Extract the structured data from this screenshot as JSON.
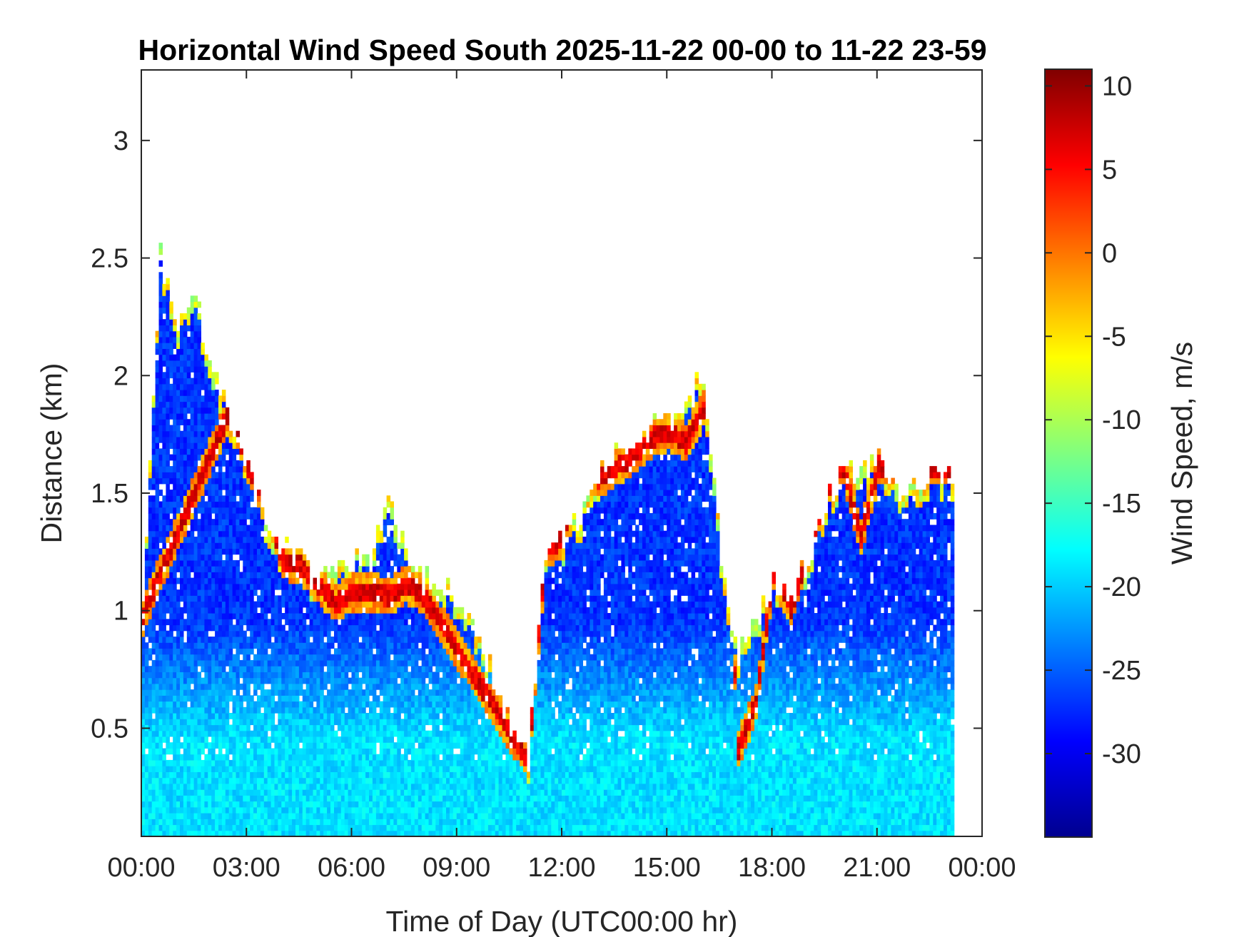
{
  "chart_data": {
    "type": "heatmap",
    "title": "Horizontal Wind Speed South 2025-11-22 00-00 to 11-22 23-59",
    "xlabel": "Time of Day (UTC00:00 hr)",
    "ylabel": "Distance (km)",
    "colorbar_label": "Wind Speed, m/s",
    "colormap": "jet",
    "x_ticks": [
      "00:00",
      "03:00",
      "06:00",
      "09:00",
      "12:00",
      "15:00",
      "18:00",
      "21:00",
      "00:00"
    ],
    "x_tick_hours": [
      0,
      3,
      6,
      9,
      12,
      15,
      18,
      21,
      24
    ],
    "xlim_hours": [
      0,
      24
    ],
    "y_ticks": [
      "0.5",
      "1",
      "1.5",
      "2",
      "2.5",
      "3"
    ],
    "y_tick_values": [
      0.5,
      1,
      1.5,
      2,
      2.5,
      3
    ],
    "ylim_km": [
      0.04,
      3.3
    ],
    "colorbar_ticks": [
      "10",
      "5",
      "0",
      "-5",
      "-10",
      "-15",
      "-20",
      "-25",
      "-30"
    ],
    "colorbar_tick_values": [
      10,
      5,
      0,
      -5,
      -10,
      -15,
      -20,
      -25,
      -30
    ],
    "clim": [
      -35,
      11
    ],
    "grid": false,
    "data_top_km_by_hour": {
      "hours": [
        0,
        0.5,
        1,
        1.5,
        2,
        2.5,
        3,
        3.5,
        4,
        4.5,
        5,
        5.5,
        6,
        6.5,
        7,
        7.5,
        8,
        8.5,
        9,
        9.5,
        10,
        10.5,
        11,
        11.5,
        12,
        12.5,
        13,
        13.5,
        14,
        14.5,
        15,
        15.5,
        16,
        16.5,
        17,
        17.5,
        18,
        18.5,
        19,
        19.5,
        20,
        20.5,
        21,
        21.5,
        22,
        22.5,
        23
      ],
      "top_km": [
        1.0,
        2.5,
        2.2,
        2.3,
        2.0,
        1.8,
        1.6,
        1.4,
        1.25,
        1.2,
        1.1,
        1.15,
        1.2,
        1.2,
        1.5,
        1.2,
        1.15,
        1.1,
        1.05,
        0.9,
        0.7,
        0.5,
        0.35,
        1.25,
        1.3,
        1.4,
        1.55,
        1.65,
        1.7,
        1.75,
        1.8,
        1.85,
        2.0,
        1.2,
        0.8,
        0.95,
        1.1,
        1.05,
        1.2,
        1.45,
        1.6,
        1.55,
        1.65,
        1.5,
        1.55,
        1.55,
        1.55
      ]
    },
    "shear_layer_km_by_hour": {
      "hours": [
        0,
        2.5,
        3,
        3.5,
        4,
        4.5,
        5,
        5.5,
        6,
        6.5,
        7,
        7.5,
        8,
        11,
        11.5,
        12,
        12.5,
        13,
        13.5,
        14,
        14.5,
        15,
        15.5,
        16,
        16.5,
        17,
        17.5,
        18,
        18.5,
        19,
        19.5,
        20,
        20.5,
        21
      ],
      "km": [
        0.97,
        1.85,
        1.6,
        1.45,
        1.2,
        1.18,
        1.1,
        1.02,
        1.07,
        1.07,
        1.05,
        1.1,
        1.05,
        0.35,
        1.25,
        1.3,
        1.65,
        1.55,
        1.6,
        1.65,
        1.72,
        1.75,
        1.7,
        1.85,
        2.0,
        0.4,
        0.6,
        1.15,
        1.0,
        1.25,
        1.5,
        1.6,
        1.3,
        1.6
      ]
    }
  }
}
